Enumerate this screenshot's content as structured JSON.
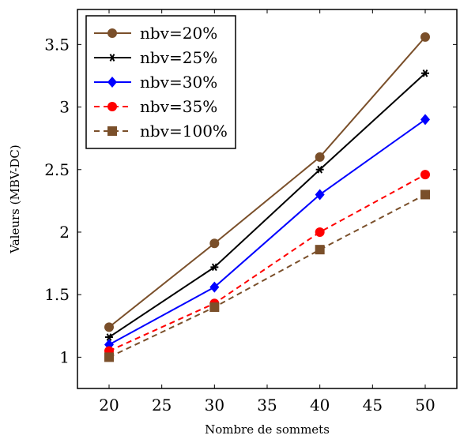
{
  "chart_data": {
    "type": "line",
    "title": "",
    "xlabel": "Nombre de sommets",
    "ylabel": "Valeurs (MBV-DC)",
    "x": [
      20,
      30,
      40,
      50
    ],
    "xlim": [
      17,
      53
    ],
    "ylim": [
      0.75,
      3.78
    ],
    "xticks": [
      20,
      25,
      30,
      35,
      40,
      45,
      50
    ],
    "yticks": [
      1,
      1.5,
      2,
      2.5,
      3,
      3.5
    ],
    "xtick_labels": [
      "20",
      "25",
      "30",
      "35",
      "40",
      "45",
      "50"
    ],
    "ytick_labels": [
      "1",
      "1.5",
      "2",
      "2.5",
      "3",
      "3.5"
    ],
    "grid": false,
    "legend_position": "top-left",
    "series": [
      {
        "name": "nbv=20%",
        "values": [
          1.24,
          1.91,
          2.6,
          3.56
        ],
        "color": "#7a4f2a",
        "marker": "circle",
        "dashed": false
      },
      {
        "name": "nbv=25%",
        "values": [
          1.16,
          1.72,
          2.5,
          3.27
        ],
        "color": "#000000",
        "marker": "star",
        "dashed": false
      },
      {
        "name": "nbv=30%",
        "values": [
          1.1,
          1.56,
          2.3,
          2.9
        ],
        "color": "#0000ff",
        "marker": "diamond",
        "dashed": false
      },
      {
        "name": "nbv=35%",
        "values": [
          1.05,
          1.43,
          2.0,
          2.46
        ],
        "color": "#ff0000",
        "marker": "circle",
        "dashed": true
      },
      {
        "name": "nbv=100%",
        "values": [
          1.0,
          1.4,
          1.86,
          2.3
        ],
        "color": "#7a4f2a",
        "marker": "square",
        "dashed": true
      }
    ]
  }
}
